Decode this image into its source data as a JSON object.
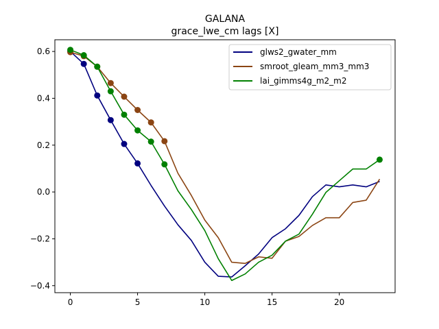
{
  "chart_data": {
    "type": "line",
    "title": "GALANA",
    "subtitle": "grace_lwe_cm lags [X]",
    "xlabel": "",
    "ylabel": "",
    "xlim": [
      -1.15,
      24.15
    ],
    "ylim": [
      -0.43,
      0.65
    ],
    "xticks": [
      0,
      5,
      10,
      15,
      20
    ],
    "yticks": [
      -0.4,
      -0.2,
      0.0,
      0.2,
      0.4,
      0.6
    ],
    "ytick_labels": [
      "−0.4",
      "−0.2",
      "0.0",
      "0.2",
      "0.4",
      "0.6"
    ],
    "grid": false,
    "legend_position": "top-right",
    "x": [
      0,
      1,
      2,
      3,
      4,
      5,
      6,
      7,
      8,
      9,
      10,
      11,
      12,
      13,
      14,
      15,
      16,
      17,
      18,
      19,
      20,
      21,
      22,
      23
    ],
    "series": [
      {
        "name": "glws2_gwater_mm",
        "color": "#00007f",
        "values": [
          0.6,
          0.547,
          0.412,
          0.307,
          0.205,
          0.122,
          0.028,
          -0.06,
          -0.14,
          -0.207,
          -0.3,
          -0.36,
          -0.363,
          -0.315,
          -0.265,
          -0.195,
          -0.157,
          -0.1,
          -0.02,
          0.03,
          0.022,
          0.03,
          0.022,
          0.045
        ],
        "marker_indices": [
          0,
          1,
          2,
          3,
          4,
          5
        ]
      },
      {
        "name": "smroot_gleam_mm3_mm3",
        "color": "#8b4513",
        "values": [
          0.597,
          0.58,
          0.535,
          0.465,
          0.407,
          0.35,
          0.297,
          0.217,
          0.08,
          -0.015,
          -0.12,
          -0.195,
          -0.3,
          -0.305,
          -0.277,
          -0.283,
          -0.21,
          -0.19,
          -0.143,
          -0.11,
          -0.11,
          -0.045,
          -0.035,
          0.055
        ],
        "marker_indices": [
          0,
          1,
          2,
          3,
          4,
          5,
          6,
          7
        ]
      },
      {
        "name": "lai_gimms4g_m2_m2",
        "color": "#008000",
        "values": [
          0.607,
          0.584,
          0.535,
          0.43,
          0.33,
          0.263,
          0.215,
          0.118,
          0.005,
          -0.075,
          -0.165,
          -0.285,
          -0.378,
          -0.35,
          -0.3,
          -0.27,
          -0.21,
          -0.18,
          -0.095,
          -0.002,
          0.048,
          0.098,
          0.098,
          0.138
        ],
        "marker_indices": [
          0,
          1,
          2,
          3,
          4,
          5,
          6,
          7,
          23
        ]
      }
    ]
  }
}
